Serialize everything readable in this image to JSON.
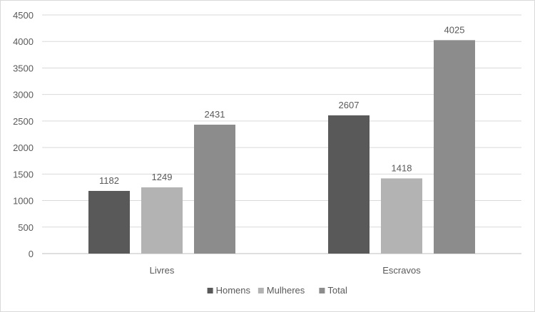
{
  "chart_data": {
    "type": "bar",
    "categories": [
      "Livres",
      "Escravos"
    ],
    "series": [
      {
        "name": "Homens",
        "values": [
          1182,
          2607
        ],
        "color": "#595959"
      },
      {
        "name": "Mulheres",
        "values": [
          1249,
          1418
        ],
        "color": "#b3b3b3"
      },
      {
        "name": "Total",
        "values": [
          2431,
          4025
        ],
        "color": "#8c8c8c"
      }
    ],
    "ylim": [
      0,
      4500
    ],
    "yticks": [
      0,
      500,
      1000,
      1500,
      2000,
      2500,
      3000,
      3500,
      4000,
      4500
    ],
    "grid": true,
    "legend_position": "bottom"
  }
}
